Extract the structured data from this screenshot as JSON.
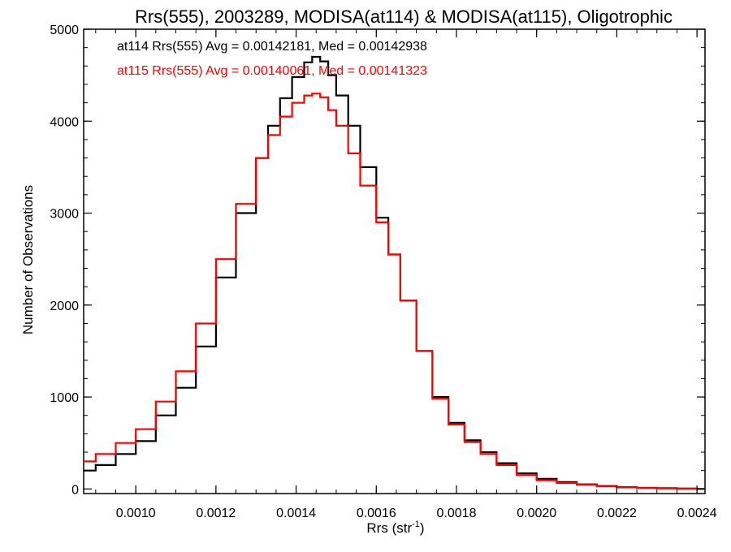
{
  "chart_data": {
    "type": "line",
    "step": true,
    "title": "Rrs(555), 2003289, MODISA(at114) & MODISA(at115), Oligotrophic",
    "xlabel": "Rrs (str",
    "xlabel_sup": "-1",
    "xlabel_end": ")",
    "ylabel": "Number of Observations",
    "xlim": [
      0.00087,
      0.00242
    ],
    "ylim": [
      -50,
      5000
    ],
    "x_ticks": [
      "0.0010",
      "0.0012",
      "0.0014",
      "0.0016",
      "0.0018",
      "0.0020",
      "0.0022",
      "0.0024"
    ],
    "y_ticks": [
      "0",
      "1000",
      "2000",
      "3000",
      "4000",
      "5000"
    ],
    "grid": false,
    "legend_position": "top-left",
    "series": [
      {
        "name": "at114 Rrs(555) Avg = 0.00142181, Med = 0.00142938",
        "color": "#000000",
        "x": [
          0.00087,
          0.0009,
          0.00095,
          0.001,
          0.00105,
          0.0011,
          0.00115,
          0.0012,
          0.00125,
          0.0013,
          0.00133,
          0.00136,
          0.00139,
          0.00142,
          0.00144,
          0.00146,
          0.00148,
          0.0015,
          0.00153,
          0.00156,
          0.0016,
          0.00163,
          0.00166,
          0.0017,
          0.00174,
          0.00178,
          0.00182,
          0.00186,
          0.0019,
          0.00195,
          0.002,
          0.00205,
          0.0021,
          0.00215,
          0.0022,
          0.00225,
          0.0023,
          0.00235,
          0.0024,
          0.00242
        ],
        "y": [
          200,
          260,
          380,
          520,
          800,
          1100,
          1550,
          2300,
          3000,
          3600,
          3950,
          4250,
          4480,
          4640,
          4700,
          4650,
          4500,
          4280,
          3950,
          3500,
          2950,
          2550,
          2050,
          1500,
          1000,
          720,
          530,
          400,
          280,
          170,
          110,
          75,
          50,
          32,
          20,
          12,
          8,
          5,
          2,
          0
        ]
      },
      {
        "name": "at115 Rrs(555) Avg = 0.00140061, Med = 0.00141323",
        "color": "#ff0000",
        "x": [
          0.00087,
          0.0009,
          0.00095,
          0.001,
          0.00105,
          0.0011,
          0.00115,
          0.0012,
          0.00125,
          0.0013,
          0.00133,
          0.00136,
          0.00139,
          0.00142,
          0.00144,
          0.00146,
          0.00148,
          0.0015,
          0.00153,
          0.00156,
          0.0016,
          0.00163,
          0.00166,
          0.0017,
          0.00174,
          0.00178,
          0.00182,
          0.00186,
          0.0019,
          0.00195,
          0.002,
          0.00205,
          0.0021,
          0.00215,
          0.0022,
          0.00225,
          0.0023,
          0.00235,
          0.0024,
          0.00242
        ],
        "y": [
          300,
          380,
          500,
          650,
          950,
          1280,
          1800,
          2500,
          3100,
          3600,
          3850,
          4050,
          4200,
          4280,
          4300,
          4260,
          4120,
          3950,
          3650,
          3300,
          2900,
          2550,
          2050,
          1500,
          980,
          700,
          510,
          380,
          260,
          150,
          95,
          65,
          45,
          28,
          17,
          10,
          6,
          4,
          2,
          0
        ]
      }
    ]
  }
}
